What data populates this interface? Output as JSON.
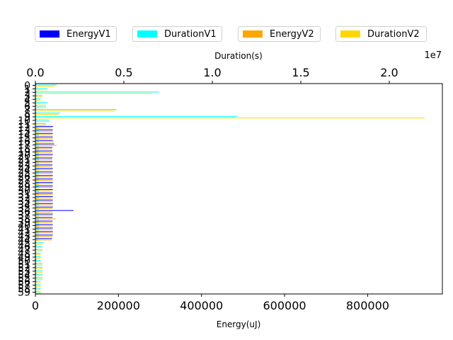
{
  "chart_data": {
    "type": "bar",
    "orientation": "horizontal",
    "categories": [
      "0",
      "1",
      "2",
      "3",
      "4",
      "5",
      "6",
      "7",
      "8",
      "9",
      "10",
      "11",
      "12",
      "13",
      "14",
      "15",
      "16",
      "17",
      "18",
      "19",
      "20",
      "21",
      "22",
      "23",
      "24",
      "25",
      "26",
      "27",
      "28",
      "29",
      "30",
      "31",
      "32",
      "33",
      "34",
      "35",
      "36",
      "37",
      "38",
      "39",
      "40",
      "41",
      "42",
      "43",
      "44",
      "45",
      "46",
      "47",
      "48",
      "49",
      "50",
      "51",
      "52",
      "53",
      "54",
      "55",
      "56",
      "57",
      "58",
      "59"
    ],
    "xlabel_bottom": "Energy(uJ)",
    "xlabel_top": "Duration(s)",
    "xlim_bottom": [
      0,
      980000
    ],
    "xlim_top": [
      0,
      23000000
    ],
    "bottom_ticks": [
      "0",
      "200000",
      "400000",
      "600000",
      "800000"
    ],
    "top_ticks": [
      "0.0",
      "0.5",
      "1.0",
      "1.5",
      "2.0"
    ],
    "top_offset_label": "1e7",
    "legend_position": "top",
    "series": [
      {
        "name": "EnergyV1",
        "axis": "bottom",
        "color": "#0000ff",
        "values": [
          2000,
          2000,
          2000,
          2000,
          2000,
          2000,
          2000,
          2000,
          2000,
          2000,
          2000,
          2000,
          43000,
          42000,
          42000,
          42000,
          42000,
          45000,
          41000,
          41000,
          42000,
          41000,
          41000,
          41000,
          42000,
          42000,
          42000,
          42000,
          42000,
          42000,
          42000,
          42000,
          42000,
          42000,
          42000,
          42000,
          92000,
          42000,
          41000,
          41000,
          42000,
          42000,
          42000,
          42000,
          40000,
          2000,
          2000,
          2000,
          2000,
          2000,
          2000,
          2000,
          2000,
          2000,
          2000,
          2000,
          2000,
          2000,
          2000,
          2000
        ]
      },
      {
        "name": "DurationV1",
        "axis": "top",
        "color": "#00ffff",
        "values": [
          1200000,
          700000,
          7000000,
          400000,
          300000,
          700000,
          600000,
          4600000,
          1400000,
          11400000,
          800000,
          600000,
          200000,
          200000,
          200000,
          200000,
          200000,
          200000,
          200000,
          200000,
          200000,
          200000,
          200000,
          200000,
          200000,
          200000,
          200000,
          200000,
          200000,
          200000,
          200000,
          200000,
          200000,
          200000,
          200000,
          200000,
          200000,
          200000,
          200000,
          200000,
          200000,
          200000,
          200000,
          200000,
          200000,
          500000,
          400000,
          400000,
          300000,
          300000,
          300000,
          400000,
          400000,
          400000,
          400000,
          400000,
          300000,
          300000,
          300000,
          300000
        ]
      },
      {
        "name": "EnergyV2",
        "axis": "bottom",
        "color": "#ffa500",
        "values": [
          2000,
          2000,
          2000,
          2000,
          2000,
          2000,
          2000,
          2000,
          2000,
          2000,
          2000,
          2000,
          41000,
          41000,
          41000,
          41000,
          44000,
          51000,
          40000,
          40000,
          41000,
          40000,
          40000,
          40000,
          41000,
          41000,
          41000,
          41000,
          41000,
          41000,
          41000,
          41000,
          41000,
          41000,
          41000,
          41000,
          41000,
          41000,
          49000,
          41000,
          41000,
          41000,
          41000,
          41000,
          39000,
          2000,
          2000,
          2000,
          2000,
          2000,
          2000,
          2000,
          2000,
          2000,
          2000,
          2000,
          2000,
          2000,
          2000,
          2000
        ]
      },
      {
        "name": "DurationV2",
        "axis": "top",
        "color": "#ffd700",
        "values": [
          1100000,
          600000,
          6600000,
          400000,
          300000,
          600000,
          600000,
          4500000,
          1300000,
          22000000,
          800000,
          600000,
          200000,
          200000,
          200000,
          200000,
          200000,
          200000,
          200000,
          200000,
          200000,
          200000,
          200000,
          200000,
          200000,
          200000,
          200000,
          200000,
          200000,
          200000,
          200000,
          200000,
          200000,
          200000,
          200000,
          200000,
          200000,
          200000,
          200000,
          200000,
          200000,
          200000,
          200000,
          200000,
          200000,
          400000,
          400000,
          400000,
          300000,
          300000,
          300000,
          400000,
          400000,
          400000,
          400000,
          400000,
          300000,
          300000,
          300000,
          300000
        ]
      }
    ]
  }
}
